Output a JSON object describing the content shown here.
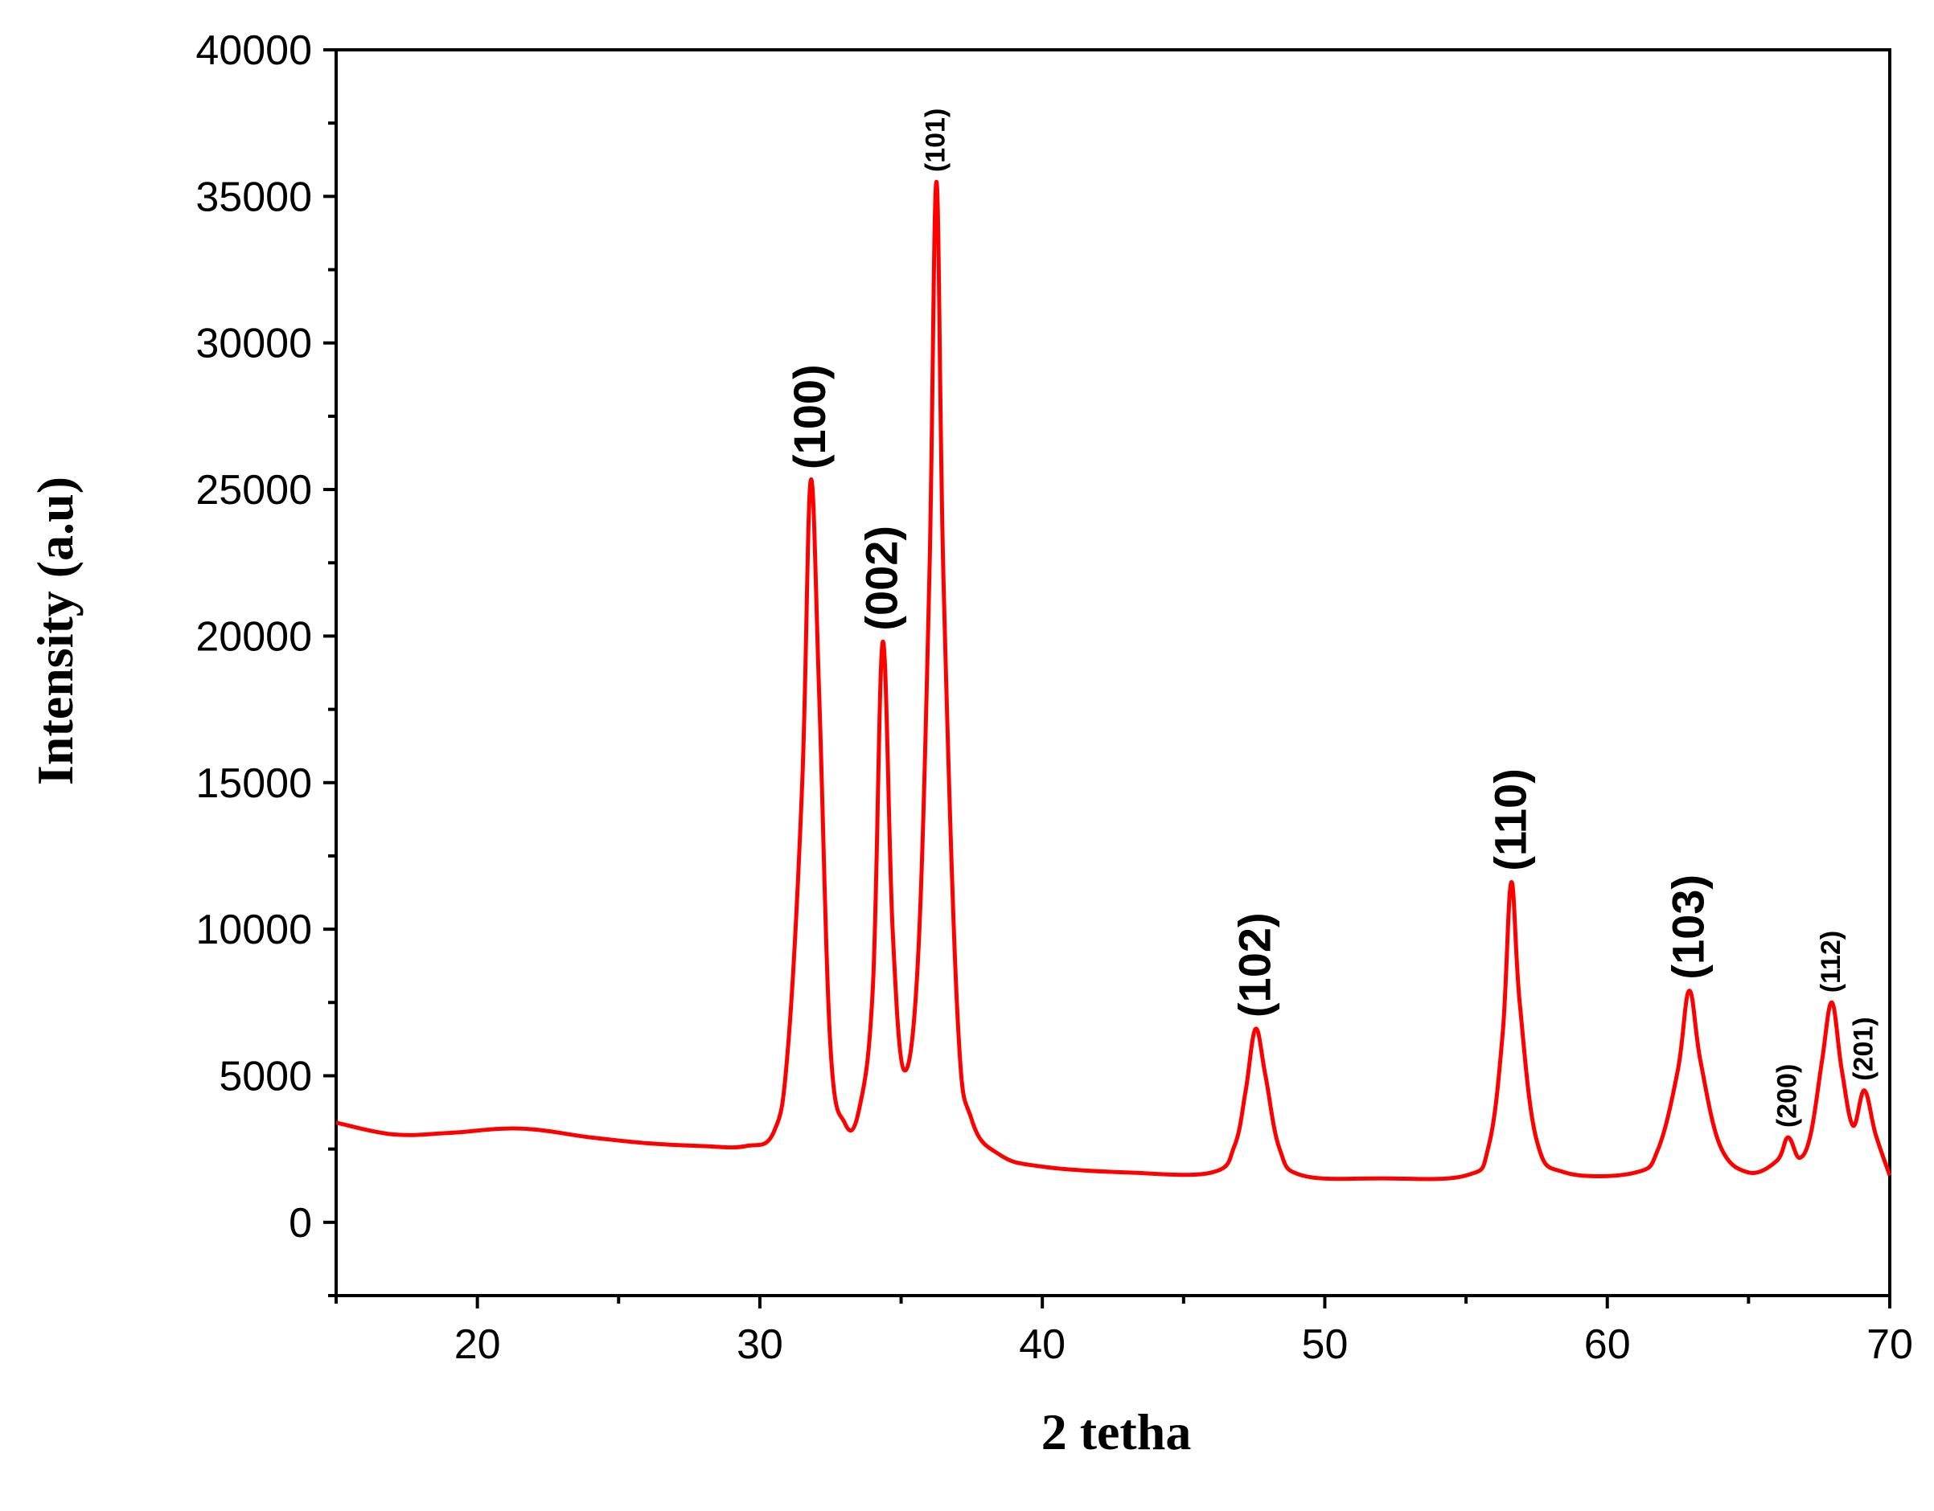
{
  "chart_data": {
    "type": "line",
    "title": "",
    "xlabel": "2 tetha",
    "ylabel": "Intensity (a.u)",
    "xlim": [
      15,
      70
    ],
    "ylim": [
      -2500,
      40000
    ],
    "x_ticks": [
      20,
      30,
      40,
      50,
      60,
      70
    ],
    "y_ticks": [
      0,
      5000,
      10000,
      15000,
      20000,
      25000,
      30000,
      35000,
      40000
    ],
    "grid": false,
    "series_color": "#ff0000",
    "series": [
      {
        "name": "",
        "x": [
          15,
          17,
          19,
          21.5,
          24,
          26,
          28,
          29.5,
          30.5,
          31,
          31.5,
          31.8,
          32.1,
          32.5,
          33.0,
          33.5,
          34.0,
          34.35,
          34.7,
          35.1,
          35.6,
          36.0,
          36.25,
          36.5,
          37.0,
          37.5,
          38.5,
          40,
          43,
          46.0,
          46.8,
          47.2,
          47.55,
          47.9,
          48.4,
          49.2,
          52,
          55.0,
          55.8,
          56.3,
          56.6,
          56.9,
          57.5,
          58.5,
          61.0,
          61.8,
          62.5,
          62.9,
          63.3,
          64.0,
          65.0,
          66.0,
          66.4,
          66.8,
          67.2,
          67.6,
          67.95,
          68.3,
          68.7,
          69.1,
          69.5,
          70
        ],
        "y": [
          3400,
          3000,
          3050,
          3200,
          2900,
          2700,
          2600,
          2600,
          3100,
          6000,
          15000,
          25300,
          18000,
          6000,
          3400,
          3800,
          8000,
          19800,
          10000,
          5200,
          9000,
          22000,
          35500,
          22000,
          7000,
          3500,
          2300,
          1900,
          1700,
          1700,
          2600,
          4500,
          6600,
          5000,
          2500,
          1600,
          1500,
          1600,
          2600,
          6500,
          11600,
          7500,
          2800,
          1700,
          1700,
          2500,
          5200,
          7900,
          5500,
          2600,
          1700,
          2100,
          2900,
          2200,
          3000,
          5500,
          7500,
          5200,
          3300,
          4500,
          3000,
          1600
        ]
      }
    ],
    "annotations": [
      {
        "text": "(100)",
        "x": 31.8,
        "y": 25300
      },
      {
        "text": "(002)",
        "x": 34.35,
        "y": 19800
      },
      {
        "text": "(101)",
        "x": 36.25,
        "y": 35500
      },
      {
        "text": "(102)",
        "x": 47.55,
        "y": 6600
      },
      {
        "text": "(110)",
        "x": 56.6,
        "y": 11600
      },
      {
        "text": "(103)",
        "x": 62.9,
        "y": 7900
      },
      {
        "text": "(200)",
        "x": 66.4,
        "y": 2900
      },
      {
        "text": "(112)",
        "x": 67.95,
        "y": 7500
      },
      {
        "text": "(201)",
        "x": 69.1,
        "y": 4500
      }
    ]
  }
}
